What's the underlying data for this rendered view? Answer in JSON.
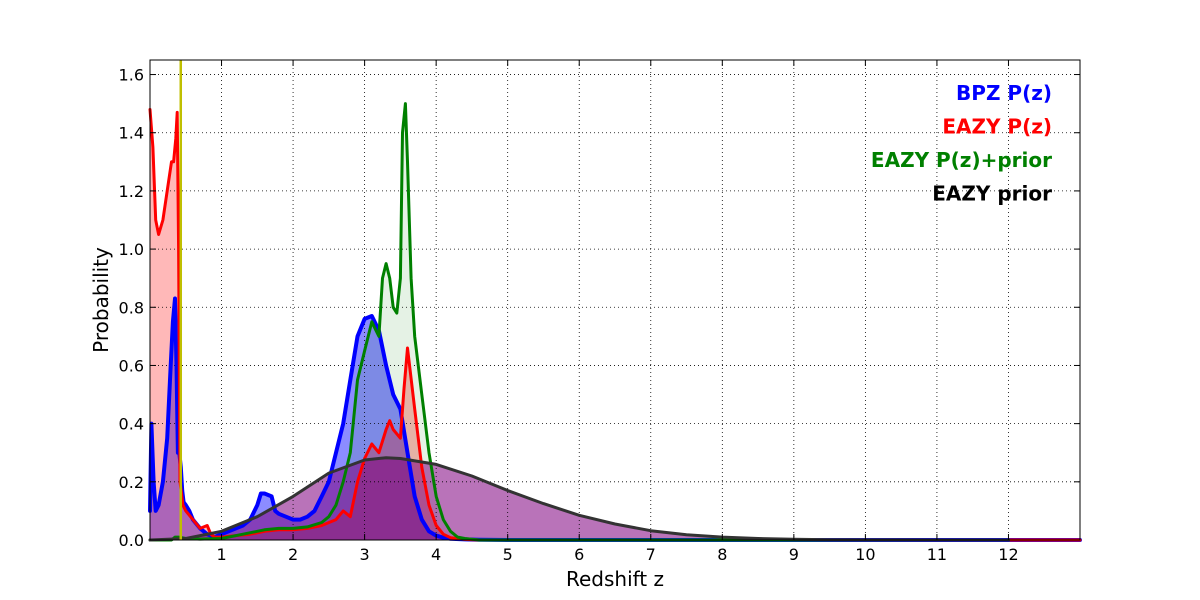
{
  "chart_data": {
    "type": "area",
    "xlabel": "Redshift z",
    "ylabel": "Probability",
    "xlim": [
      0,
      13
    ],
    "ylim": [
      0,
      1.65
    ],
    "xticks": [
      1,
      2,
      3,
      4,
      5,
      6,
      7,
      8,
      9,
      10,
      11,
      12
    ],
    "yticks": [
      0.0,
      0.2,
      0.4,
      0.6,
      0.8,
      1.0,
      1.2,
      1.4,
      1.6
    ],
    "ytick_labels": [
      "0.0",
      "0.2",
      "0.4",
      "0.6",
      "0.8",
      "1.0",
      "1.2",
      "1.4",
      "1.6"
    ],
    "grid": true,
    "legend_position": "top-right",
    "vline": {
      "x": 0.43,
      "color": "#bfbf00"
    },
    "series": [
      {
        "name": "BPZ P(z)",
        "color": "#0000ff",
        "fill": "#0000ff",
        "fill_opacity": 0.45,
        "stroke_width": 4,
        "x": [
          0.0,
          0.02,
          0.05,
          0.08,
          0.12,
          0.18,
          0.24,
          0.29,
          0.32,
          0.35,
          0.37,
          0.39,
          0.41,
          0.43,
          0.45,
          0.47,
          0.5,
          0.55,
          0.6,
          0.7,
          0.8,
          0.9,
          1.0,
          1.1,
          1.2,
          1.3,
          1.4,
          1.5,
          1.55,
          1.6,
          1.7,
          1.75,
          1.8,
          1.9,
          2.0,
          2.1,
          2.2,
          2.3,
          2.4,
          2.5,
          2.6,
          2.7,
          2.8,
          2.9,
          3.0,
          3.1,
          3.2,
          3.3,
          3.4,
          3.5,
          3.6,
          3.7,
          3.8,
          3.9,
          4.0,
          4.1,
          4.2,
          4.4,
          4.6,
          5.0,
          6.0,
          8.0,
          10.0,
          12.0,
          13.0
        ],
        "y": [
          0.1,
          0.4,
          0.2,
          0.1,
          0.12,
          0.2,
          0.35,
          0.6,
          0.75,
          0.83,
          0.6,
          0.3,
          0.3,
          0.25,
          0.17,
          0.13,
          0.12,
          0.1,
          0.07,
          0.04,
          0.02,
          0.01,
          0.02,
          0.03,
          0.04,
          0.05,
          0.07,
          0.12,
          0.16,
          0.16,
          0.15,
          0.1,
          0.09,
          0.08,
          0.07,
          0.07,
          0.08,
          0.1,
          0.15,
          0.2,
          0.3,
          0.4,
          0.55,
          0.7,
          0.76,
          0.77,
          0.72,
          0.6,
          0.5,
          0.45,
          0.3,
          0.15,
          0.07,
          0.03,
          0.015,
          0.008,
          0.004,
          0.002,
          0.001,
          0.0,
          0.0,
          0.0,
          0.0,
          0.0,
          0.0
        ]
      },
      {
        "name": "EAZY P(z)",
        "color": "#ff0000",
        "fill": "#ff0000",
        "fill_opacity": 0.28,
        "stroke_width": 3,
        "x": [
          0.0,
          0.04,
          0.08,
          0.12,
          0.18,
          0.24,
          0.3,
          0.33,
          0.36,
          0.38,
          0.4,
          0.42,
          0.44,
          0.46,
          0.5,
          0.6,
          0.7,
          0.8,
          0.85,
          0.9,
          1.0,
          1.2,
          1.4,
          1.6,
          1.8,
          2.0,
          2.2,
          2.4,
          2.6,
          2.7,
          2.8,
          2.9,
          3.0,
          3.1,
          3.2,
          3.3,
          3.35,
          3.4,
          3.5,
          3.55,
          3.6,
          3.7,
          3.8,
          3.9,
          4.0,
          4.1,
          4.2,
          4.4,
          4.6,
          5.0,
          13.0
        ],
        "y": [
          1.48,
          1.35,
          1.1,
          1.05,
          1.1,
          1.2,
          1.3,
          1.3,
          1.38,
          1.47,
          1.0,
          0.2,
          0.16,
          0.12,
          0.1,
          0.07,
          0.04,
          0.05,
          0.02,
          0.01,
          0.01,
          0.015,
          0.02,
          0.03,
          0.035,
          0.035,
          0.04,
          0.05,
          0.07,
          0.1,
          0.08,
          0.2,
          0.28,
          0.33,
          0.3,
          0.38,
          0.41,
          0.38,
          0.35,
          0.52,
          0.66,
          0.45,
          0.25,
          0.12,
          0.05,
          0.02,
          0.008,
          0.002,
          0.0,
          0.0,
          0.0
        ]
      },
      {
        "name": "EAZY P(z)+prior",
        "color": "#008000",
        "fill": "#008000",
        "fill_opacity": 0.1,
        "stroke_width": 3,
        "x": [
          0.0,
          0.3,
          0.35,
          0.4,
          0.5,
          0.7,
          1.0,
          1.3,
          1.5,
          1.6,
          1.8,
          2.0,
          2.2,
          2.4,
          2.5,
          2.6,
          2.7,
          2.8,
          2.9,
          3.0,
          3.1,
          3.2,
          3.25,
          3.3,
          3.35,
          3.4,
          3.45,
          3.5,
          3.53,
          3.57,
          3.6,
          3.65,
          3.7,
          3.8,
          3.9,
          4.0,
          4.1,
          4.2,
          4.3,
          4.4,
          4.6,
          5.0,
          8.0,
          12.0
        ],
        "y": [
          0.0,
          0.0,
          0.01,
          0.01,
          0.005,
          0.003,
          0.005,
          0.02,
          0.03,
          0.035,
          0.04,
          0.04,
          0.045,
          0.06,
          0.08,
          0.12,
          0.2,
          0.3,
          0.55,
          0.65,
          0.75,
          0.7,
          0.9,
          0.95,
          0.9,
          0.8,
          0.78,
          0.9,
          1.4,
          1.5,
          1.3,
          0.9,
          0.7,
          0.5,
          0.3,
          0.15,
          0.07,
          0.03,
          0.01,
          0.005,
          0.0,
          0.0,
          0.0,
          0.0
        ]
      },
      {
        "name": "EAZY prior",
        "color": "#333333",
        "fill": "#800080",
        "fill_opacity": 0.55,
        "stroke_width": 3,
        "x": [
          0.0,
          0.5,
          1.0,
          1.5,
          2.0,
          2.5,
          3.0,
          3.3,
          3.5,
          4.0,
          4.5,
          5.0,
          5.5,
          6.0,
          6.5,
          7.0,
          7.5,
          8.0,
          8.5,
          9.0,
          9.5,
          10.0,
          11.0,
          12.0
        ],
        "y": [
          0.0,
          0.005,
          0.03,
          0.08,
          0.15,
          0.23,
          0.275,
          0.283,
          0.28,
          0.26,
          0.22,
          0.17,
          0.125,
          0.085,
          0.055,
          0.032,
          0.018,
          0.01,
          0.005,
          0.0025,
          0.0012,
          0.0005,
          0.0001,
          0.0
        ]
      }
    ]
  }
}
